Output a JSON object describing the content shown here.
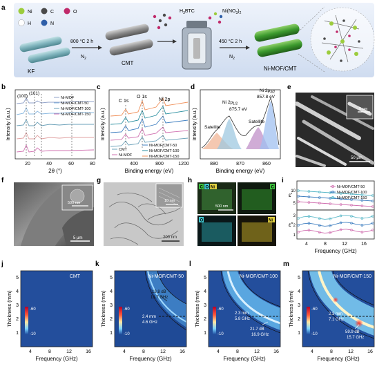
{
  "schematic": {
    "panel_label": "a",
    "legend": {
      "ni": "Ni",
      "c": "C",
      "o": "O",
      "h": "H",
      "n": "N",
      "colors": {
        "ni": "#9ccc3c",
        "c": "#4a4a4a",
        "o": "#c02a6a",
        "h": "#ffffff",
        "n": "#2f5fa8"
      }
    },
    "steps": {
      "step1_temp": "800 °C 2 h",
      "step1_gas": "N",
      "step1_gas_sub": "2",
      "reagent1_prefix": "H",
      "reagent1_sub": "3",
      "reagent1_suffix": "BTC",
      "reagent2_main": "Ni(NO",
      "reagent2_sub": "3",
      "reagent2_suffix": ")",
      "reagent2_sub2": "2",
      "step2_temp": "450 °C 2 h",
      "step2_gas": "N",
      "step2_gas_sub": "2"
    },
    "materials": {
      "kf": "KF",
      "cmt": "CMT",
      "product": "Ni-MOF/CMT"
    }
  },
  "panels": {
    "b": {
      "label": "b",
      "peak1": "(100)",
      "peak2": "(101)",
      "xlabel": "2θ (°)",
      "ylabel": "Intensity (a.u.)",
      "ticks": [
        "20",
        "40",
        "60",
        "80"
      ],
      "legend": [
        "Ni-MOF",
        "Ni-MOF/CMT-50",
        "Ni-MOF/CMT-100",
        "Ni-MOF/CMT-150"
      ]
    },
    "c": {
      "label": "c",
      "peaks": [
        "C 1s",
        "O 1s",
        "Ni 2p"
      ],
      "xlabel": "Binding energy (eV)",
      "ylabel": "Intensity (a.u.)",
      "ticks": [
        "400",
        "800",
        "1200"
      ],
      "legend_left": [
        "CMT",
        "Ni-MOF"
      ],
      "legend_right": [
        "Ni-MOF/CMT-50",
        "Ni-MOF/CMT-100",
        "Ni-MOF/CMT-150"
      ]
    },
    "d": {
      "label": "d",
      "xlabel": "Binding energy (eV)",
      "ylabel": "Intensity (a.u.)",
      "ticks": [
        "880",
        "870",
        "860"
      ],
      "satellite": "Satellite",
      "ni2p12_main": "Ni 2p",
      "ni2p12_sub": "1/2",
      "ni2p12_value": "875.7 eV",
      "ni2p32_main": "Ni 2p",
      "ni2p32_sub": "3/2",
      "ni2p32_value": "857.8 eV"
    },
    "e": {
      "label": "e",
      "scale_inset": "5 μm",
      "scale_main": "50 μm"
    },
    "f": {
      "label": "f",
      "scale_inset": "500 nm",
      "scale_main": "5 μm"
    },
    "g": {
      "label": "g",
      "scale_inset": "10 nm",
      "scale_main": "200 nm"
    },
    "h": {
      "label": "h",
      "el_c": "C",
      "el_o": "O",
      "el_ni": "Ni",
      "scale": "500 nm"
    },
    "i": {
      "label": "i",
      "eps_real": "ε′",
      "eps_imag": "ε″",
      "xlabel": "Frequency (GHz)",
      "ticks": [
        "4",
        "8",
        "12",
        "16"
      ],
      "legend": [
        "Ni-MOF/CMT-50",
        "Ni-MOF/CMT-100",
        "Ni-MOF/CMT-150"
      ],
      "yticks_top": [
        "5",
        "10"
      ],
      "yticks_bottom": [
        "1",
        "2",
        "3"
      ]
    },
    "j": {
      "label": "j",
      "title": "CMT"
    },
    "k": {
      "label": "k",
      "title": "Ni-MOF/CMT-50",
      "ann1_l1": "2.4 mm",
      "ann1_l2": "4.6 GHz",
      "ann2_l1": "13.8 dB",
      "ann2_l2": "13.7 GHz"
    },
    "l": {
      "label": "l",
      "title": "Ni-MOF/CMT-100",
      "ann1_l1": "2.3 mm",
      "ann1_l2": "5.8 GHz",
      "ann2_l1": "21.7 dB",
      "ann2_l2": "16.9 GHz"
    },
    "m": {
      "label": "m",
      "title": "Ni-MOF/CMT-150",
      "ann1_l1": "2.3 mm",
      "ann1_l2": "7.1 GHz",
      "ann2_l1": "59.9 dB",
      "ann2_l2": "15.7 GHz"
    },
    "rl_common": {
      "xlabel": "Frequency (GHz)",
      "ylabel": "Thickness (mm)",
      "xticks": [
        "4",
        "8",
        "12",
        "16"
      ],
      "yticks": [
        "1",
        "2",
        "3",
        "4",
        "5"
      ],
      "cbar_max": "-60",
      "cbar_min": "-10"
    }
  }
}
